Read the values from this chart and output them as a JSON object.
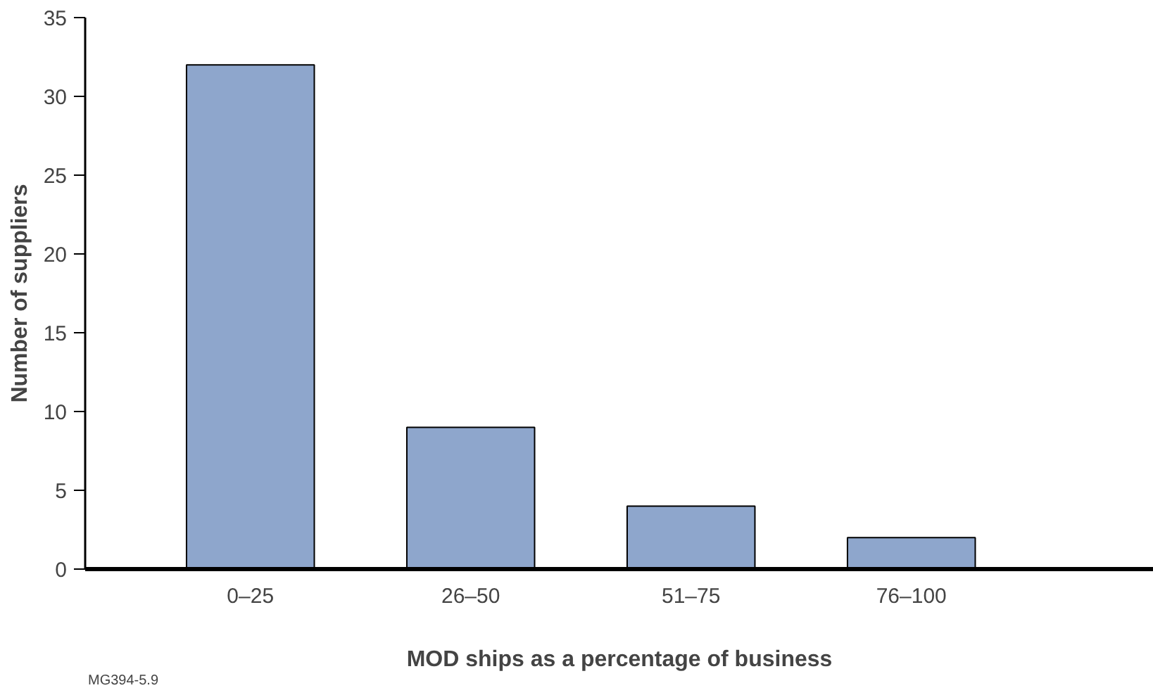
{
  "chart_data": {
    "type": "bar",
    "xlabel": "MOD ships as a percentage of business",
    "ylabel": "Number of suppliers",
    "categories": [
      "0–25",
      "26–50",
      "51–75",
      "76–100"
    ],
    "values": [
      32,
      9,
      4,
      2
    ],
    "color": "#8ea6cc",
    "ylim": [
      0,
      35
    ],
    "yticks": [
      0,
      5,
      10,
      15,
      20,
      25,
      30,
      35
    ],
    "grid": false,
    "annotations": [
      "MG394-5.9"
    ]
  }
}
